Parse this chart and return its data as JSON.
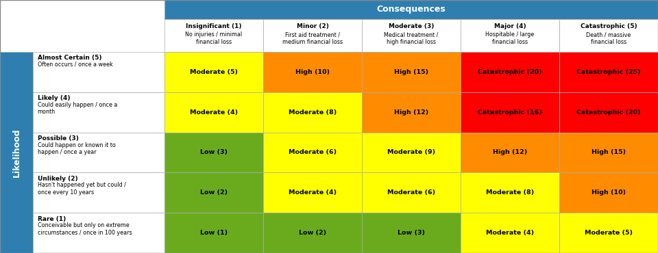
{
  "consequences_header": "Consequences",
  "likelihood_label": "Likelihood",
  "col_headers": [
    {
      "bold": "Insignificant (1)",
      "sub": "No injuries / minimal\nfinancial loss"
    },
    {
      "bold": "Minor (2)",
      "sub": "First aid treatment /\nmedium financial loss"
    },
    {
      "bold": "Moderate (3)",
      "sub": "Medical treatment /\nhigh financial loss"
    },
    {
      "bold": "Major (4)",
      "sub": "Hospitable / large\nfinancial loss"
    },
    {
      "bold": "Catastrophic (5)",
      "sub": "Death / massive\nfinancial loss"
    }
  ],
  "row_headers": [
    {
      "bold": "Almost Certain (5)",
      "sub": "Often occurs / once a week"
    },
    {
      "bold": "Likely (4)",
      "sub": "Could easily happen / once a\nmonth"
    },
    {
      "bold": "Possible (3)",
      "sub": "Could happen or known it to\nhappen / once a year"
    },
    {
      "bold": "Unlikely (2)",
      "sub": "Hasn't happened yet but could /\nonce every 10 years"
    },
    {
      "bold": "Rare (1)",
      "sub": "Conceivable but only on extreme\ncircumstances / once in 100 years"
    }
  ],
  "cell_data": [
    [
      "Moderate (5)",
      "High (10)",
      "High (15)",
      "Catastrophic (20)",
      "Catastrophic (25)"
    ],
    [
      "Moderate (4)",
      "Moderate (8)",
      "High (12)",
      "Catastrophic (16)",
      "Catastrophic (20)"
    ],
    [
      "Low (3)",
      "Moderate (6)",
      "Moderate (9)",
      "High (12)",
      "High (15)"
    ],
    [
      "Low (2)",
      "Moderate (4)",
      "Moderate (6)",
      "Moderate (8)",
      "High (10)"
    ],
    [
      "Low (1)",
      "Low (2)",
      "Low (3)",
      "Moderate (4)",
      "Moderate (5)"
    ]
  ],
  "cell_colors": [
    [
      "#FFFF00",
      "#FF8C00",
      "#FF8C00",
      "#FF0000",
      "#FF0000"
    ],
    [
      "#FFFF00",
      "#FFFF00",
      "#FF8C00",
      "#FF0000",
      "#FF0000"
    ],
    [
      "#6AAB1E",
      "#FFFF00",
      "#FFFF00",
      "#FF8C00",
      "#FF8C00"
    ],
    [
      "#6AAB1E",
      "#FFFF00",
      "#FFFF00",
      "#FFFF00",
      "#FF8C00"
    ],
    [
      "#6AAB1E",
      "#6AAB1E",
      "#6AAB1E",
      "#FFFF00",
      "#FFFF00"
    ]
  ],
  "header_bg": "#2E7FB0",
  "header_text": "#FFFFFF",
  "likelihood_bg": "#2E7FB0",
  "likelihood_text": "#FFFFFF",
  "row_header_bg": "#FFFFFF",
  "border_color": "#AAAAAA",
  "text_color": "#000000"
}
